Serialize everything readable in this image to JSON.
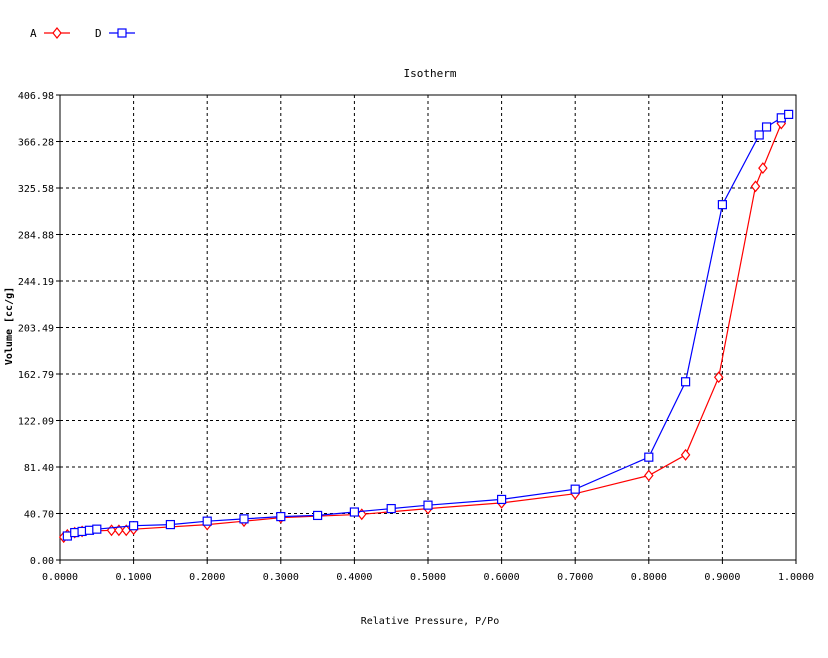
{
  "chart_data": {
    "type": "line",
    "title": "Isotherm",
    "xlabel": "Relative Pressure, P/Po",
    "ylabel": "Volume [cc/g]",
    "xlim": [
      0.0,
      1.0
    ],
    "ylim": [
      0.0,
      406.98
    ],
    "grid": true,
    "legend_position": "top-left",
    "x_tick_labels": [
      "0.0000",
      "0.1000",
      "0.2000",
      "0.3000",
      "0.4000",
      "0.5000",
      "0.6000",
      "0.7000",
      "0.8000",
      "0.9000",
      "1.0000"
    ],
    "y_tick_labels": [
      "0.00",
      "40.70",
      "81.40",
      "122.09",
      "162.79",
      "203.49",
      "244.19",
      "284.88",
      "325.58",
      "366.28",
      "406.98"
    ],
    "series": [
      {
        "name": "A",
        "color": "#ff0000",
        "marker": "diamond",
        "x": [
          0.005,
          0.01,
          0.02,
          0.03,
          0.07,
          0.08,
          0.09,
          0.1,
          0.2,
          0.25,
          0.3,
          0.41,
          0.5,
          0.6,
          0.7,
          0.8,
          0.85,
          0.895,
          0.945,
          0.955,
          0.98
        ],
        "y": [
          20,
          22,
          24,
          25,
          26,
          26,
          26,
          27,
          31,
          34,
          37,
          40,
          45,
          50,
          58,
          74,
          92,
          160,
          327,
          343,
          382
        ]
      },
      {
        "name": "D",
        "color": "#0000ff",
        "marker": "square",
        "x": [
          0.01,
          0.02,
          0.03,
          0.04,
          0.05,
          0.1,
          0.15,
          0.2,
          0.25,
          0.3,
          0.35,
          0.4,
          0.45,
          0.5,
          0.6,
          0.7,
          0.8,
          0.85,
          0.9,
          0.95,
          0.96,
          0.98,
          0.99
        ],
        "y": [
          21,
          24,
          25,
          26,
          27,
          30,
          31,
          34,
          36,
          38,
          39,
          42,
          45,
          48,
          53,
          62,
          90,
          156,
          311,
          372,
          379,
          387,
          390
        ]
      }
    ]
  }
}
